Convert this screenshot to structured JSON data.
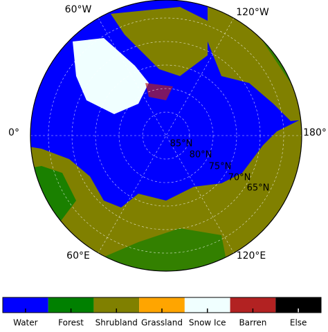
{
  "map": {
    "longitude_labels": [
      "60°W",
      "120°W",
      "0°",
      "180°",
      "60°E",
      "120°E"
    ],
    "latitude_labels": [
      "85°N",
      "80°N",
      "75°N",
      "70°N",
      "65°N"
    ]
  },
  "legend": {
    "categories": [
      {
        "name": "Water",
        "color": "#0000ff"
      },
      {
        "name": "Forest",
        "color": "#008000"
      },
      {
        "name": "Shrubland",
        "color": "#808000"
      },
      {
        "name": "Grassland",
        "color": "#ffa500"
      },
      {
        "name": "Snow Ice",
        "color": "#f0ffff"
      },
      {
        "name": "Barren",
        "color": "#b22222"
      },
      {
        "name": "Else",
        "color": "#000000"
      }
    ]
  }
}
